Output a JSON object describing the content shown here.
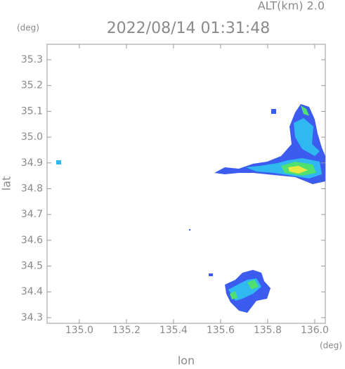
{
  "chart_data": {
    "type": "radar-map",
    "title": "2022/08/14 01:31:48",
    "altitude_label": "ALT(km) 2.0",
    "xlabel": "lon",
    "ylabel": "lat",
    "x_unit": "(deg)",
    "y_unit": "(deg)",
    "xlim": [
      134.863,
      136.045
    ],
    "ylim": [
      34.278,
      35.36
    ],
    "xticks": [
      {
        "value": 135,
        "label": "135.0"
      },
      135.2,
      135.4,
      135.6,
      135.8,
      {
        "value": 136,
        "label": "136.0"
      }
    ],
    "yticks": [
      {
        "value": 34.3,
        "label": "34.3"
      },
      34.4,
      34.5,
      34.6,
      34.7,
      34.8,
      34.9,
      {
        "value": 35,
        "label": "35.0"
      },
      35.1,
      35.2,
      35.3
    ]
  }
}
